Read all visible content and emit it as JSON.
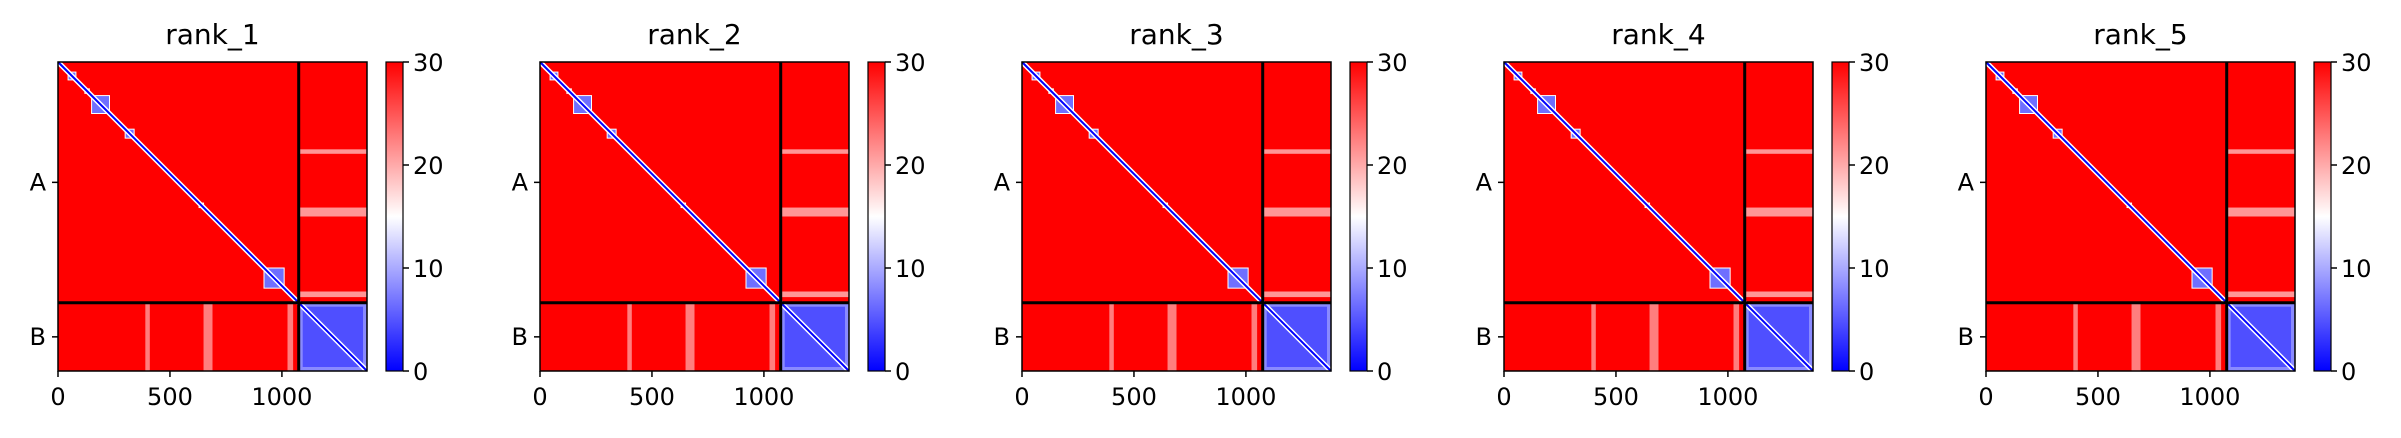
{
  "chart_data": [
    {
      "type": "heatmap",
      "title": "rank_1",
      "x_ticks": [
        0,
        500,
        1000
      ],
      "xlim": [
        0,
        1380
      ],
      "chain_labels": [
        "A",
        "B"
      ],
      "chain_boundary": 1075,
      "colorbar": {
        "ticks": [
          0,
          10,
          20,
          30
        ],
        "range": [
          0,
          30
        ],
        "colors": [
          "#0000ff",
          "#ffffff",
          "#ff0000"
        ]
      },
      "low_blocks": [
        [
          0,
          15
        ],
        [
          45,
          80
        ],
        [
          120,
          140
        ],
        [
          150,
          230
        ],
        [
          300,
          340
        ],
        [
          630,
          650
        ],
        [
          920,
          1010
        ]
      ],
      "band_rows": [
        [
          390,
          410
        ],
        [
          650,
          690
        ],
        [
          1025,
          1050
        ],
        [
          1130,
          1145
        ],
        [
          1195,
          1215
        ],
        [
          1285,
          1310
        ]
      ]
    },
    {
      "type": "heatmap",
      "title": "rank_2",
      "x_ticks": [
        0,
        500,
        1000
      ],
      "xlim": [
        0,
        1380
      ],
      "chain_labels": [
        "A",
        "B"
      ],
      "chain_boundary": 1075,
      "colorbar": {
        "ticks": [
          0,
          10,
          20,
          30
        ],
        "range": [
          0,
          30
        ],
        "colors": [
          "#0000ff",
          "#ffffff",
          "#ff0000"
        ]
      },
      "low_blocks": [
        [
          0,
          15
        ],
        [
          45,
          80
        ],
        [
          120,
          140
        ],
        [
          150,
          230
        ],
        [
          300,
          340
        ],
        [
          630,
          650
        ],
        [
          920,
          1010
        ]
      ],
      "band_rows": [
        [
          390,
          410
        ],
        [
          650,
          690
        ],
        [
          1025,
          1050
        ],
        [
          1130,
          1145
        ],
        [
          1195,
          1215
        ],
        [
          1285,
          1310
        ]
      ]
    },
    {
      "type": "heatmap",
      "title": "rank_3",
      "x_ticks": [
        0,
        500,
        1000
      ],
      "xlim": [
        0,
        1380
      ],
      "chain_labels": [
        "A",
        "B"
      ],
      "chain_boundary": 1075,
      "colorbar": {
        "ticks": [
          0,
          10,
          20,
          30
        ],
        "range": [
          0,
          30
        ],
        "colors": [
          "#0000ff",
          "#ffffff",
          "#ff0000"
        ]
      },
      "low_blocks": [
        [
          0,
          15
        ],
        [
          45,
          80
        ],
        [
          120,
          140
        ],
        [
          150,
          230
        ],
        [
          300,
          340
        ],
        [
          630,
          650
        ],
        [
          920,
          1010
        ]
      ],
      "band_rows": [
        [
          390,
          410
        ],
        [
          650,
          690
        ],
        [
          1025,
          1050
        ],
        [
          1130,
          1145
        ],
        [
          1195,
          1215
        ],
        [
          1285,
          1310
        ]
      ]
    },
    {
      "type": "heatmap",
      "title": "rank_4",
      "x_ticks": [
        0,
        500,
        1000
      ],
      "xlim": [
        0,
        1380
      ],
      "chain_labels": [
        "A",
        "B"
      ],
      "chain_boundary": 1075,
      "colorbar": {
        "ticks": [
          0,
          10,
          20,
          30
        ],
        "range": [
          0,
          30
        ],
        "colors": [
          "#0000ff",
          "#ffffff",
          "#ff0000"
        ]
      },
      "low_blocks": [
        [
          0,
          15
        ],
        [
          45,
          80
        ],
        [
          120,
          140
        ],
        [
          150,
          230
        ],
        [
          300,
          340
        ],
        [
          630,
          650
        ],
        [
          920,
          1010
        ]
      ],
      "band_rows": [
        [
          390,
          410
        ],
        [
          650,
          690
        ],
        [
          1025,
          1050
        ],
        [
          1130,
          1145
        ],
        [
          1195,
          1215
        ],
        [
          1285,
          1310
        ]
      ]
    },
    {
      "type": "heatmap",
      "title": "rank_5",
      "x_ticks": [
        0,
        500,
        1000
      ],
      "xlim": [
        0,
        1380
      ],
      "chain_labels": [
        "A",
        "B"
      ],
      "chain_boundary": 1075,
      "colorbar": {
        "ticks": [
          0,
          10,
          20,
          30
        ],
        "range": [
          0,
          30
        ],
        "colors": [
          "#0000ff",
          "#ffffff",
          "#ff0000"
        ]
      },
      "low_blocks": [
        [
          0,
          15
        ],
        [
          45,
          80
        ],
        [
          120,
          140
        ],
        [
          150,
          230
        ],
        [
          300,
          340
        ],
        [
          630,
          650
        ],
        [
          920,
          1010
        ]
      ],
      "band_rows": [
        [
          390,
          410
        ],
        [
          650,
          690
        ],
        [
          1025,
          1050
        ],
        [
          1130,
          1145
        ],
        [
          1195,
          1215
        ],
        [
          1285,
          1310
        ]
      ]
    }
  ]
}
